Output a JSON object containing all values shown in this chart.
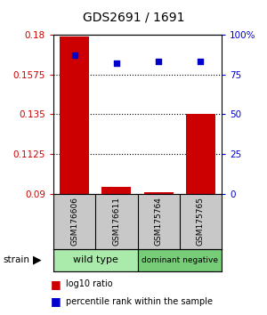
{
  "title": "GDS2691 / 1691",
  "samples": [
    "GSM176606",
    "GSM176611",
    "GSM175764",
    "GSM175765"
  ],
  "bar_values": [
    0.179,
    0.094,
    0.091,
    0.135
  ],
  "dot_pct_values": [
    87,
    82,
    83,
    83
  ],
  "ylim_left": [
    0.09,
    0.18
  ],
  "ylim_right": [
    0,
    100
  ],
  "yticks_left": [
    0.09,
    0.1125,
    0.135,
    0.1575,
    0.18
  ],
  "yticks_right": [
    0,
    25,
    50,
    75,
    100
  ],
  "ytick_labels_left": [
    "0.09",
    "0.1125",
    "0.135",
    "0.1575",
    "0.18"
  ],
  "ytick_labels_right": [
    "0",
    "25",
    "50",
    "75",
    "100%"
  ],
  "bar_color": "#cc0000",
  "dot_color": "#0000cc",
  "background_color": "#ffffff",
  "bar_width": 0.7,
  "legend_bar_label": "log10 ratio",
  "legend_dot_label": "percentile rank within the sample",
  "strain_label": "strain",
  "sample_box_color": "#c8c8c8",
  "wt_color": "#aaeaaa",
  "dn_color": "#88cc88",
  "group_spans": [
    [
      -0.5,
      1.5,
      "wild type",
      "#aaeaaa"
    ],
    [
      1.5,
      3.5,
      "dominant negative",
      "#77cc77"
    ]
  ]
}
